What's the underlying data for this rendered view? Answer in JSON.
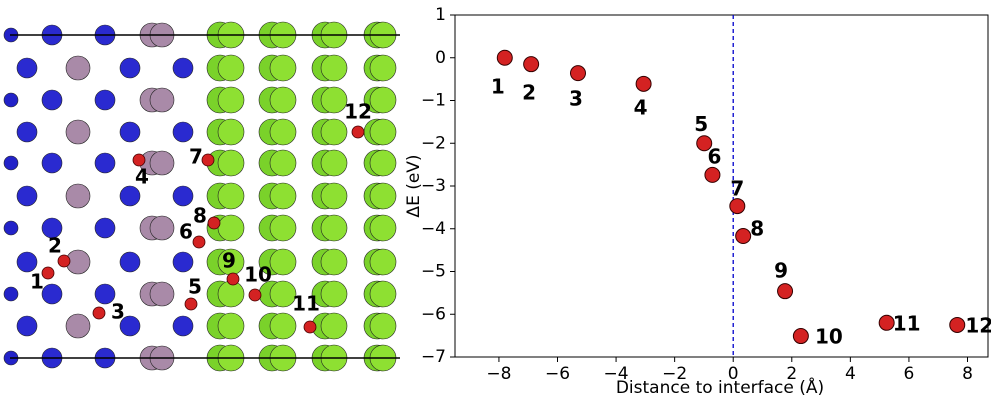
{
  "chart_data": {
    "type": "scatter",
    "xlabel": "Distance to interface (Å)",
    "ylabel": "ΔE (eV)",
    "x": [
      -7.8,
      -6.9,
      -5.3,
      -3.06,
      -0.99,
      -0.71,
      0.14,
      0.34,
      1.77,
      2.31,
      5.24,
      7.65
    ],
    "values": [
      0,
      -0.15,
      -0.36,
      -0.61,
      -2.0,
      -2.74,
      -3.47,
      -4.17,
      -5.46,
      -6.51,
      -6.2,
      -6.25
    ],
    "point_labels": [
      "1",
      "2",
      "3",
      "4",
      "5",
      "6",
      "7",
      "8",
      "9",
      "10",
      "11",
      "12"
    ],
    "color": "#d42222",
    "vline": 0,
    "vline_color": "#0000cc",
    "xlim": [
      -9.5,
      8.7
    ],
    "ylim": [
      -7,
      1
    ],
    "xticks": [
      {
        "value": -8,
        "label": "−8"
      },
      {
        "value": -6,
        "label": "−6"
      },
      {
        "value": -4,
        "label": "−4"
      },
      {
        "value": -2,
        "label": "−2"
      },
      0,
      2,
      4,
      6,
      8
    ],
    "yticks": [
      1,
      0,
      {
        "value": -1,
        "label": "−1"
      },
      {
        "value": -2,
        "label": "−2"
      },
      {
        "value": -3,
        "label": "−3"
      },
      {
        "value": -4,
        "label": "−4"
      },
      {
        "value": -5,
        "label": "−5"
      },
      {
        "value": -6,
        "label": "−6"
      },
      {
        "value": -7,
        "label": "−7"
      }
    ]
  }
}
